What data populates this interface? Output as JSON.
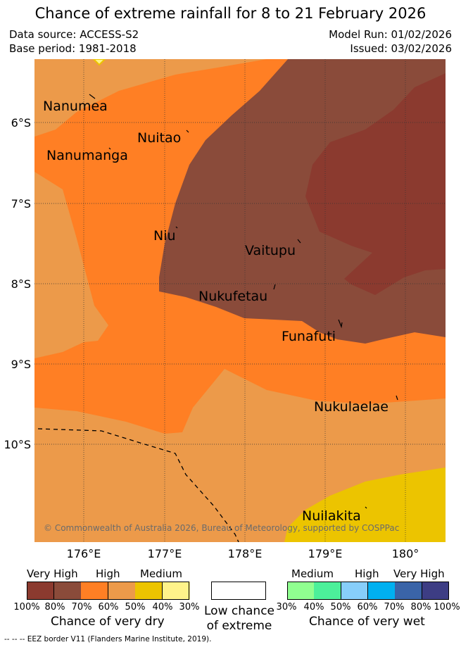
{
  "title": "Chance of extreme rainfall for 8 to 21 February 2026",
  "header": {
    "data_source": "Data source: ACCESS-S2",
    "base_period": "Base period: 1981-2018",
    "model_run": "Model Run: 01/02/2026",
    "issued": "Issued: 03/02/2026"
  },
  "map": {
    "lat_ticks": [
      "6°S",
      "7°S",
      "8°S",
      "9°S",
      "10°S"
    ],
    "lon_ticks": [
      "176°E",
      "177°E",
      "178°E",
      "179°E",
      "180°"
    ],
    "places": {
      "nanumea": "Nanumea",
      "nuitao": "Nuitao",
      "nanumanga": "Nanumanga",
      "niu": "Niu",
      "vaitupu": "Vaitupu",
      "nukufetau": "Nukufetau",
      "funafuti": "Funafuti",
      "nukulaelae": "Nukulaelae",
      "nuilakita": "Nuilakita"
    },
    "copyright": "© Commonwealth of Australia 2026, Bureau of Meteorology, supported by COSPPac",
    "category_colors": {
      "dry_very_high_90": "#8b3a2f",
      "dry_very_high_80": "#8a4b3a",
      "dry_high_70": "#ff7f24",
      "dry_high_60": "#ec9a4a",
      "dry_medium_50": "#ecc400",
      "dry_medium_40": "#fff38a"
    }
  },
  "legend": {
    "dry": {
      "headings": [
        "Very High",
        "High",
        "Medium"
      ],
      "percentages": [
        "100%",
        "80%",
        "70%",
        "60%",
        "50%",
        "40%",
        "30%"
      ],
      "colors": [
        "#8b3a2f",
        "#8a4b3a",
        "#ff7f24",
        "#ec9a4a",
        "#ecc400",
        "#fff38a"
      ],
      "caption": "Chance of very dry"
    },
    "low": {
      "caption_line1": "Low chance",
      "caption_line2": "of extreme",
      "color": "#ffffff"
    },
    "wet": {
      "headings": [
        "Medium",
        "High",
        "Very High"
      ],
      "percentages": [
        "30%",
        "40%",
        "50%",
        "60%",
        "70%",
        "80%",
        "100%"
      ],
      "colors": [
        "#90ff90",
        "#4cf09a",
        "#87cefa",
        "#00b0f0",
        "#3a64a8",
        "#3d3d84"
      ],
      "caption": "Chance of very wet"
    }
  },
  "eez_note": "--  --  -- EEZ border V11 (Flanders Marine Institute, 2019)."
}
